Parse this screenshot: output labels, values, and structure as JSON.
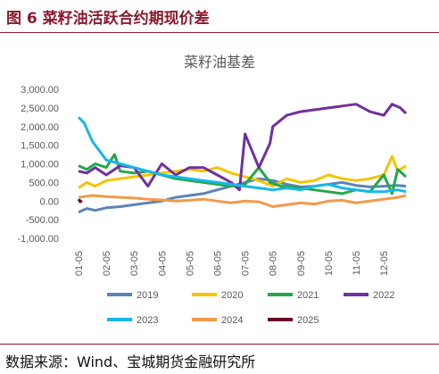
{
  "header": {
    "figure_title": "图 6 菜籽油活跃合约期现价差"
  },
  "footer": {
    "source": "数据来源：Wind、宝城期货金融研究所"
  },
  "chart_data": {
    "type": "line",
    "title": "菜籽油基差",
    "xlabel": "",
    "ylabel": "",
    "ylim": [
      -1000,
      3000
    ],
    "yticks": [
      "3,000.00",
      "2,500.00",
      "2,000.00",
      "1,500.00",
      "1,000.00",
      "500.00",
      "0.00",
      "-500.00",
      "-1,000.00"
    ],
    "xticks": [
      "01-05",
      "02-05",
      "03-05",
      "04-05",
      "05-05",
      "06-05",
      "07-05",
      "08-05",
      "09-05",
      "10-05",
      "11-05",
      "12-05"
    ],
    "grid": false,
    "legend_position": "bottom",
    "series": [
      {
        "name": "2019",
        "color": "#5b84b8",
        "x": [
          0,
          0.3,
          0.6,
          1.0,
          1.5,
          2.0,
          2.5,
          3.0,
          3.5,
          4.0,
          4.5,
          5.0,
          5.5,
          6.0,
          6.5,
          7.0,
          7.5,
          8.0,
          8.5,
          9.0,
          9.5,
          10.0,
          10.5,
          11.0,
          11.5,
          11.8
        ],
        "values": [
          -300,
          -200,
          -250,
          -180,
          -150,
          -100,
          -50,
          0,
          100,
          150,
          200,
          300,
          400,
          500,
          600,
          550,
          450,
          380,
          400,
          450,
          500,
          420,
          380,
          400,
          420,
          400
        ]
      },
      {
        "name": "2020",
        "color": "#f5c400",
        "x": [
          0,
          0.3,
          0.6,
          1.0,
          1.5,
          2.0,
          2.5,
          3.0,
          3.5,
          4.0,
          4.5,
          5.0,
          5.5,
          6.0,
          6.5,
          7.0,
          7.5,
          8.0,
          8.5,
          9.0,
          9.5,
          10.0,
          10.5,
          11.0,
          11.3,
          11.5,
          11.8
        ],
        "values": [
          350,
          500,
          400,
          550,
          600,
          650,
          700,
          750,
          800,
          850,
          800,
          900,
          750,
          650,
          550,
          400,
          600,
          500,
          550,
          700,
          600,
          550,
          600,
          700,
          1200,
          800,
          950
        ]
      },
      {
        "name": "2021",
        "color": "#22a84a",
        "x": [
          0,
          0.3,
          0.6,
          1.0,
          1.3,
          1.5,
          2.0,
          2.5,
          3.0,
          3.5,
          4.0,
          4.5,
          5.0,
          5.5,
          6.0,
          6.5,
          6.9,
          7.3,
          8.0,
          8.5,
          9.0,
          9.5,
          10.0,
          10.5,
          11.0,
          11.3,
          11.5,
          11.8
        ],
        "values": [
          950,
          850,
          1000,
          900,
          1250,
          800,
          750,
          800,
          700,
          600,
          550,
          500,
          450,
          400,
          450,
          900,
          500,
          400,
          350,
          300,
          250,
          200,
          300,
          250,
          700,
          200,
          850,
          650
        ]
      },
      {
        "name": "2022",
        "color": "#7030a0",
        "x": [
          0,
          0.3,
          0.6,
          1.0,
          1.5,
          2.0,
          2.5,
          3.0,
          3.5,
          4.0,
          4.5,
          5.0,
          5.5,
          5.8,
          6.0,
          6.5,
          6.9,
          7.0,
          7.5,
          8.0,
          8.5,
          9.0,
          9.5,
          10.0,
          10.5,
          11.0,
          11.3,
          11.6,
          11.8
        ],
        "values": [
          800,
          750,
          900,
          700,
          950,
          900,
          400,
          1000,
          700,
          900,
          900,
          700,
          500,
          300,
          1800,
          900,
          1550,
          2000,
          2300,
          2400,
          2450,
          2500,
          2550,
          2600,
          2400,
          2300,
          2600,
          2500,
          2350
        ]
      },
      {
        "name": "2023",
        "color": "#16b8e8",
        "x": [
          0,
          0.2,
          0.5,
          1.0,
          1.5,
          2.0,
          2.5,
          3.0,
          3.5,
          4.0,
          4.5,
          5.0,
          5.5,
          6.0,
          6.5,
          7.0,
          7.5,
          8.0,
          8.5,
          9.0,
          9.5,
          10.0,
          10.5,
          11.0,
          11.5,
          11.8
        ],
        "values": [
          2250,
          2100,
          1600,
          1100,
          1000,
          900,
          800,
          700,
          650,
          600,
          550,
          500,
          450,
          400,
          350,
          300,
          350,
          300,
          400,
          450,
          350,
          300,
          250,
          250,
          300,
          250
        ]
      },
      {
        "name": "2024",
        "color": "#f29a4a",
        "x": [
          0,
          0.5,
          1.0,
          1.5,
          2.0,
          2.5,
          3.0,
          3.5,
          4.0,
          4.5,
          5.0,
          5.5,
          6.0,
          6.5,
          7.0,
          7.5,
          8.0,
          8.5,
          9.0,
          9.5,
          10.0,
          10.5,
          11.0,
          11.5,
          11.8
        ],
        "values": [
          100,
          150,
          120,
          100,
          80,
          50,
          30,
          0,
          20,
          50,
          0,
          -50,
          0,
          -20,
          -150,
          -100,
          -50,
          -80,
          0,
          20,
          -50,
          0,
          50,
          100,
          150
        ]
      },
      {
        "name": "2025",
        "color": "#6b0a24",
        "x": [
          0,
          0.06,
          0.12
        ],
        "values": [
          50,
          -20,
          20
        ]
      }
    ]
  }
}
